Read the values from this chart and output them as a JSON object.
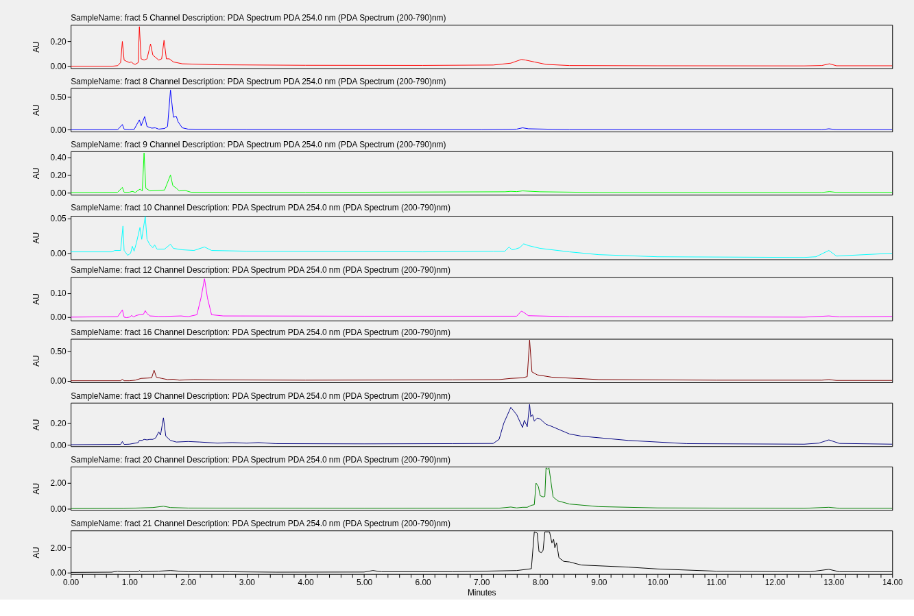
{
  "chart_data": [
    {
      "type": "line",
      "title": "SampleName: fract 5 Channel Description: PDA Spectrum PDA 254.0 nm (PDA Spectrum (200-790)nm)",
      "ylabel": "AU",
      "tick_labels": "y",
      "xlim": [
        0,
        14
      ],
      "ylim": [
        -0.017,
        0.334
      ],
      "yticks": [
        {
          "value": 0,
          "label": "0.00"
        },
        {
          "value": 0.2,
          "label": "0.20"
        }
      ],
      "x": [
        0,
        0.7,
        0.8,
        0.85,
        0.88,
        0.91,
        0.95,
        1.0,
        1.03,
        1.07,
        1.1,
        1.15,
        1.17,
        1.2,
        1.25,
        1.3,
        1.36,
        1.4,
        1.45,
        1.5,
        1.55,
        1.59,
        1.63,
        1.68,
        1.75,
        1.9,
        2.5,
        4,
        6,
        7.2,
        7.5,
        7.68,
        7.75,
        7.9,
        8.1,
        8.5,
        10,
        12.5,
        12.8,
        12.93,
        13.05,
        14
      ],
      "series": [
        {
          "color": "#ff0000",
          "values": [
            0,
            0,
            0.005,
            0.03,
            0.2,
            0.05,
            0.04,
            0.03,
            0.035,
            0.02,
            0.015,
            0.03,
            0.32,
            0.06,
            0.05,
            0.06,
            0.18,
            0.09,
            0.07,
            0.05,
            0.06,
            0.21,
            0.06,
            0.06,
            0.035,
            0.02,
            0.012,
            0.008,
            0.007,
            0.01,
            0.025,
            0.055,
            0.05,
            0.035,
            0.015,
            0.006,
            0.004,
            0.003,
            0.006,
            0.02,
            0.004,
            0.004
          ]
        }
      ]
    },
    {
      "type": "line",
      "title": "SampleName: fract 8 Channel Description: PDA Spectrum PDA 254.0 nm (PDA Spectrum (200-790)nm)",
      "ylabel": "AU",
      "tick_labels": "y",
      "xlim": [
        0,
        14
      ],
      "ylim": [
        -0.027,
        0.63
      ],
      "yticks": [
        {
          "value": 0,
          "label": "0.00"
        },
        {
          "value": 0.5,
          "label": "0.50"
        }
      ],
      "x": [
        0,
        0.8,
        0.88,
        0.91,
        1.0,
        1.05,
        1.08,
        1.17,
        1.2,
        1.26,
        1.3,
        1.38,
        1.44,
        1.5,
        1.6,
        1.65,
        1.7,
        1.75,
        1.8,
        1.83,
        1.9,
        2.0,
        3,
        7,
        7.6,
        7.7,
        7.8,
        8.5,
        12.8,
        12.92,
        13.05,
        14
      ],
      "series": [
        {
          "color": "#0000ff",
          "values": [
            0,
            0.002,
            0.08,
            0.01,
            0.005,
            0.01,
            0.005,
            0.15,
            0.06,
            0.2,
            0.05,
            0.025,
            0.03,
            0.01,
            0.02,
            0.05,
            0.6,
            0.19,
            0.2,
            0.12,
            0.03,
            0.01,
            0.005,
            0.003,
            0.01,
            0.03,
            0.015,
            0.003,
            0.002,
            0.015,
            0.002,
            0.002
          ]
        }
      ]
    },
    {
      "type": "line",
      "title": "SampleName: fract 9 Channel Description: PDA Spectrum PDA 254.0 nm (PDA Spectrum (200-790)nm)",
      "ylabel": "AU",
      "tick_labels": "y",
      "xlim": [
        0,
        14
      ],
      "ylim": [
        -0.024,
        0.468
      ],
      "yticks": [
        {
          "value": 0,
          "label": "0.00"
        },
        {
          "value": 0.2,
          "label": "0.20"
        },
        {
          "value": 0.4,
          "label": "0.40"
        }
      ],
      "x": [
        0,
        0.8,
        0.88,
        0.91,
        1.0,
        1.05,
        1.1,
        1.18,
        1.22,
        1.25,
        1.28,
        1.35,
        1.6,
        1.7,
        1.74,
        1.8,
        1.85,
        1.95,
        2.05,
        4,
        7.4,
        7.5,
        7.6,
        7.7,
        8,
        9,
        12.8,
        12.93,
        13.05,
        14
      ],
      "series": [
        {
          "color": "#00ff00",
          "values": [
            0,
            0.005,
            0.06,
            0.005,
            0.005,
            0.015,
            0.003,
            0.04,
            0.02,
            0.45,
            0.05,
            0.02,
            0.03,
            0.2,
            0.08,
            0.05,
            0.02,
            0.025,
            0.005,
            0.003,
            0.01,
            0.015,
            0.012,
            0.02,
            0.01,
            0.002,
            0.002,
            0.012,
            0.003,
            0.004
          ]
        }
      ]
    },
    {
      "type": "line",
      "title": "SampleName: fract 10 Channel Description: PDA Spectrum PDA 254.0 nm (PDA Spectrum (200-790)nm)",
      "ylabel": "AU",
      "tick_labels": "y",
      "xlim": [
        0,
        14
      ],
      "ylim": [
        -0.0087,
        0.0536
      ],
      "yticks": [
        {
          "value": 0,
          "label": "0.00"
        },
        {
          "value": 0.05,
          "label": "0.05"
        }
      ],
      "x": [
        0,
        0.7,
        0.75,
        0.85,
        0.89,
        0.91,
        0.93,
        0.97,
        1.02,
        1.05,
        1.08,
        1.12,
        1.18,
        1.21,
        1.27,
        1.3,
        1.35,
        1.4,
        1.43,
        1.47,
        1.6,
        1.7,
        1.75,
        1.9,
        2.1,
        2.28,
        2.4,
        3,
        6,
        7.2,
        7.4,
        7.47,
        7.52,
        7.58,
        7.65,
        7.72,
        7.8,
        8.0,
        8.5,
        9,
        10,
        12.5,
        12.7,
        12.92,
        13.05,
        14
      ],
      "series": [
        {
          "color": "#00ffff",
          "values": [
            0.002,
            0.002,
            0.004,
            0.004,
            0.039,
            0.004,
            0.002,
            -0.003,
            0.0,
            0.01,
            0.003,
            0.015,
            0.037,
            0.02,
            0.053,
            0.02,
            0.012,
            0.008,
            0.012,
            0.006,
            0.006,
            0.013,
            0.007,
            0.005,
            0.004,
            0.009,
            0.004,
            0.003,
            0.002,
            0.003,
            0.003,
            0.009,
            0.005,
            0.006,
            0.008,
            0.0135,
            0.011,
            0.007,
            0.002,
            -0.002,
            -0.005,
            -0.006,
            -0.005,
            0.004,
            -0.004,
            0.0
          ]
        }
      ]
    },
    {
      "type": "line",
      "title": "SampleName: fract 12 Channel Description: PDA Spectrum PDA 254.0 nm (PDA Spectrum (200-790)nm)",
      "ylabel": "AU",
      "tick_labels": "y",
      "xlim": [
        0,
        14
      ],
      "ylim": [
        -0.014,
        0.167
      ],
      "yticks": [
        {
          "value": 0,
          "label": "0.00"
        },
        {
          "value": 0.1,
          "label": "0.10"
        }
      ],
      "x": [
        0,
        0.8,
        0.88,
        0.91,
        0.95,
        1.0,
        1.04,
        1.07,
        1.12,
        1.2,
        1.24,
        1.27,
        1.3,
        1.35,
        1.5,
        1.6,
        1.88,
        2.0,
        2.15,
        2.22,
        2.28,
        2.33,
        2.4,
        2.6,
        5,
        7.6,
        7.68,
        7.72,
        7.8,
        8.5,
        12.5,
        12.92,
        13.1,
        14
      ],
      "series": [
        {
          "color": "#ff00ff",
          "values": [
            0,
            0.002,
            0.03,
            0.0,
            -0.002,
            0.0,
            0.007,
            0.001,
            0.007,
            0.012,
            0.012,
            0.027,
            0.015,
            0.005,
            0.003,
            0.003,
            0.005,
            0.002,
            0.01,
            0.08,
            0.16,
            0.08,
            0.01,
            0.005,
            0.004,
            0.004,
            0.025,
            0.02,
            0.006,
            0.002,
            0.0,
            0.005,
            0.001,
            0.003
          ]
        }
      ]
    },
    {
      "type": "line",
      "title": "SampleName: fract 16 Channel Description: PDA Spectrum PDA 254.0 nm (PDA Spectrum (200-790)nm)",
      "ylabel": "AU",
      "tick_labels": "y",
      "xlim": [
        0,
        14
      ],
      "ylim": [
        -0.027,
        0.71
      ],
      "yticks": [
        {
          "value": 0,
          "label": "0.00"
        },
        {
          "value": 0.5,
          "label": "0.50"
        }
      ],
      "x": [
        0,
        0.85,
        0.88,
        0.91,
        1.0,
        1.1,
        1.2,
        1.3,
        1.38,
        1.42,
        1.46,
        1.55,
        1.65,
        1.75,
        1.85,
        2.1,
        2.5,
        4,
        6.5,
        7.3,
        7.5,
        7.7,
        7.78,
        7.82,
        7.86,
        7.95,
        8.2,
        9,
        11,
        12.8,
        12.92,
        13.05,
        14
      ],
      "series": [
        {
          "color": "#800000",
          "values": [
            0,
            0.0,
            0.025,
            0.0,
            0.0,
            0.01,
            0.04,
            0.045,
            0.05,
            0.18,
            0.06,
            0.04,
            0.02,
            0.025,
            0.01,
            0.02,
            0.015,
            0.01,
            0.015,
            0.02,
            0.04,
            0.05,
            0.07,
            0.69,
            0.15,
            0.1,
            0.06,
            0.02,
            0.01,
            0.01,
            0.02,
            0.005,
            0.005
          ]
        }
      ]
    },
    {
      "type": "line",
      "title": "SampleName: fract 19 Channel Description: PDA Spectrum PDA 254.0 nm (PDA Spectrum (200-790)nm)",
      "ylabel": "AU",
      "tick_labels": "y",
      "xlim": [
        0,
        14
      ],
      "ylim": [
        -0.014,
        0.391
      ],
      "yticks": [
        {
          "value": 0,
          "label": "0.00"
        },
        {
          "value": 0.2,
          "label": "0.20"
        }
      ],
      "x": [
        0,
        0.85,
        0.88,
        0.91,
        1.0,
        1.05,
        1.15,
        1.17,
        1.22,
        1.25,
        1.3,
        1.35,
        1.4,
        1.45,
        1.5,
        1.53,
        1.58,
        1.62,
        1.7,
        1.8,
        2.0,
        2.2,
        2.5,
        2.75,
        3.0,
        3.2,
        3.5,
        5,
        6.5,
        7.2,
        7.3,
        7.38,
        7.5,
        7.6,
        7.7,
        7.73,
        7.78,
        7.82,
        7.84,
        7.87,
        7.9,
        7.95,
        8.0,
        8.1,
        8.2,
        8.5,
        8.7,
        9.5,
        10.5,
        12.5,
        12.75,
        12.92,
        13.1,
        14
      ],
      "series": [
        {
          "color": "#000080",
          "values": [
            0,
            0.003,
            0.03,
            0.003,
            0.005,
            0.01,
            0.02,
            0.04,
            0.04,
            0.05,
            0.045,
            0.05,
            0.05,
            0.065,
            0.12,
            0.09,
            0.25,
            0.08,
            0.04,
            0.025,
            0.03,
            0.025,
            0.015,
            0.02,
            0.015,
            0.02,
            0.01,
            0.008,
            0.01,
            0.012,
            0.05,
            0.2,
            0.348,
            0.28,
            0.16,
            0.227,
            0.168,
            0.376,
            0.26,
            0.28,
            0.22,
            0.248,
            0.24,
            0.19,
            0.17,
            0.1,
            0.08,
            0.04,
            0.01,
            0.005,
            0.015,
            0.045,
            0.012,
            0.005
          ]
        }
      ]
    },
    {
      "type": "line",
      "title": "SampleName: fract 20 Channel Description: PDA Spectrum PDA 254.0 nm (PDA Spectrum (200-790)nm)",
      "ylabel": "AU",
      "tick_labels": "y",
      "xlim": [
        0,
        14
      ],
      "ylim": [
        -0.12,
        3.25
      ],
      "yticks": [
        {
          "value": 0,
          "label": "0.00"
        },
        {
          "value": 2,
          "label": "2.00"
        }
      ],
      "x": [
        0,
        0.9,
        1.2,
        1.4,
        1.58,
        1.7,
        2,
        5,
        7.3,
        7.5,
        7.6,
        7.7,
        7.78,
        7.85,
        7.9,
        7.93,
        7.97,
        8.0,
        8.05,
        8.08,
        8.1,
        8.13,
        8.15,
        8.18,
        8.22,
        8.3,
        8.5,
        9,
        10,
        12.5,
        12.92,
        13.1,
        14
      ],
      "series": [
        {
          "color": "#008000",
          "values": [
            0,
            0.01,
            0.05,
            0.08,
            0.18,
            0.08,
            0.04,
            0.02,
            0.03,
            0.12,
            0.05,
            0.1,
            0.1,
            0.25,
            0.3,
            1.97,
            1.7,
            1.0,
            0.9,
            0.95,
            3.15,
            3.05,
            3.15,
            2.2,
            0.9,
            0.6,
            0.35,
            0.15,
            0.05,
            0.02,
            0.1,
            0.02,
            0.02
          ]
        }
      ]
    },
    {
      "type": "line",
      "title": "SampleName: fract 21 Channel Description: PDA Spectrum PDA 254.0 nm (PDA Spectrum (200-790)nm)",
      "ylabel": "AU",
      "xlabel": "Minutes",
      "xlim": [
        0,
        14
      ],
      "ylim": [
        -0.13,
        3.41
      ],
      "yticks": [
        {
          "value": 0,
          "label": "0.00"
        },
        {
          "value": 2,
          "label": "2.00"
        }
      ],
      "xticks": [
        {
          "value": 0,
          "label": "0.00"
        },
        {
          "value": 0.2,
          "label": null
        },
        {
          "value": 0.4,
          "label": null
        },
        {
          "value": 0.6,
          "label": null
        },
        {
          "value": 0.8,
          "label": null
        },
        {
          "value": 1,
          "label": "1.00"
        },
        {
          "value": 1.2,
          "label": null
        },
        {
          "value": 1.4,
          "label": null
        },
        {
          "value": 1.6,
          "label": null
        },
        {
          "value": 1.8,
          "label": null
        },
        {
          "value": 2,
          "label": "2.00"
        },
        {
          "value": 2.2,
          "label": null
        },
        {
          "value": 2.4,
          "label": null
        },
        {
          "value": 2.6,
          "label": null
        },
        {
          "value": 2.8,
          "label": null
        },
        {
          "value": 3,
          "label": "3.00"
        },
        {
          "value": 3.2,
          "label": null
        },
        {
          "value": 3.4,
          "label": null
        },
        {
          "value": 3.6,
          "label": null
        },
        {
          "value": 3.8,
          "label": null
        },
        {
          "value": 4,
          "label": "4.00"
        },
        {
          "value": 4.2,
          "label": null
        },
        {
          "value": 4.4,
          "label": null
        },
        {
          "value": 4.6,
          "label": null
        },
        {
          "value": 4.8,
          "label": null
        },
        {
          "value": 5,
          "label": "5.00"
        },
        {
          "value": 5.2,
          "label": null
        },
        {
          "value": 5.4,
          "label": null
        },
        {
          "value": 5.6,
          "label": null
        },
        {
          "value": 5.8,
          "label": null
        },
        {
          "value": 6,
          "label": "6.00"
        },
        {
          "value": 6.2,
          "label": null
        },
        {
          "value": 6.4,
          "label": null
        },
        {
          "value": 6.6,
          "label": null
        },
        {
          "value": 6.8,
          "label": null
        },
        {
          "value": 7,
          "label": "7.00"
        },
        {
          "value": 7.2,
          "label": null
        },
        {
          "value": 7.4,
          "label": null
        },
        {
          "value": 7.6,
          "label": null
        },
        {
          "value": 7.8,
          "label": null
        },
        {
          "value": 8,
          "label": "8.00"
        },
        {
          "value": 8.2,
          "label": null
        },
        {
          "value": 8.4,
          "label": null
        },
        {
          "value": 8.6,
          "label": null
        },
        {
          "value": 8.8,
          "label": null
        },
        {
          "value": 9,
          "label": "9.00"
        },
        {
          "value": 9.2,
          "label": null
        },
        {
          "value": 9.4,
          "label": null
        },
        {
          "value": 9.6,
          "label": null
        },
        {
          "value": 9.8,
          "label": null
        },
        {
          "value": 10,
          "label": "10.00"
        },
        {
          "value": 10.2,
          "label": null
        },
        {
          "value": 10.4,
          "label": null
        },
        {
          "value": 10.6,
          "label": null
        },
        {
          "value": 10.8,
          "label": null
        },
        {
          "value": 11,
          "label": "11.00"
        },
        {
          "value": 11.2,
          "label": null
        },
        {
          "value": 11.4,
          "label": null
        },
        {
          "value": 11.6,
          "label": null
        },
        {
          "value": 11.8,
          "label": null
        },
        {
          "value": 12,
          "label": "12.00"
        },
        {
          "value": 12.2,
          "label": null
        },
        {
          "value": 12.4,
          "label": null
        },
        {
          "value": 12.6,
          "label": null
        },
        {
          "value": 12.8,
          "label": null
        },
        {
          "value": 13,
          "label": "13.00"
        },
        {
          "value": 13.2,
          "label": null
        },
        {
          "value": 13.4,
          "label": null
        },
        {
          "value": 13.6,
          "label": null
        },
        {
          "value": 13.8,
          "label": null
        },
        {
          "value": 14,
          "label": "14.00"
        }
      ],
      "x": [
        0,
        0.7,
        0.8,
        0.9,
        1.15,
        1.17,
        1.2,
        1.5,
        1.7,
        2.0,
        2.7,
        3.5,
        5.0,
        5.15,
        5.3,
        6.5,
        7.6,
        7.85,
        7.9,
        7.95,
        7.98,
        8.02,
        8.05,
        8.08,
        8.16,
        8.2,
        8.23,
        8.25,
        8.28,
        8.32,
        8.4,
        8.5,
        8.7,
        9.5,
        10,
        11,
        12.6,
        12.92,
        13.1,
        14
      ],
      "series": [
        {
          "color": "#000000",
          "values": [
            0,
            0.02,
            0.1,
            0.05,
            0.05,
            0.15,
            0.05,
            0.1,
            0.15,
            0.05,
            0.05,
            0.02,
            0.03,
            0.15,
            0.05,
            0.05,
            0.15,
            0.3,
            3.3,
            3.2,
            1.7,
            1.6,
            1.8,
            3.3,
            3.3,
            2.4,
            2.7,
            2.0,
            2.4,
            1.2,
            0.9,
            0.85,
            0.6,
            0.43,
            0.28,
            0.1,
            0.05,
            0.25,
            0.05,
            0.05
          ]
        }
      ]
    }
  ]
}
